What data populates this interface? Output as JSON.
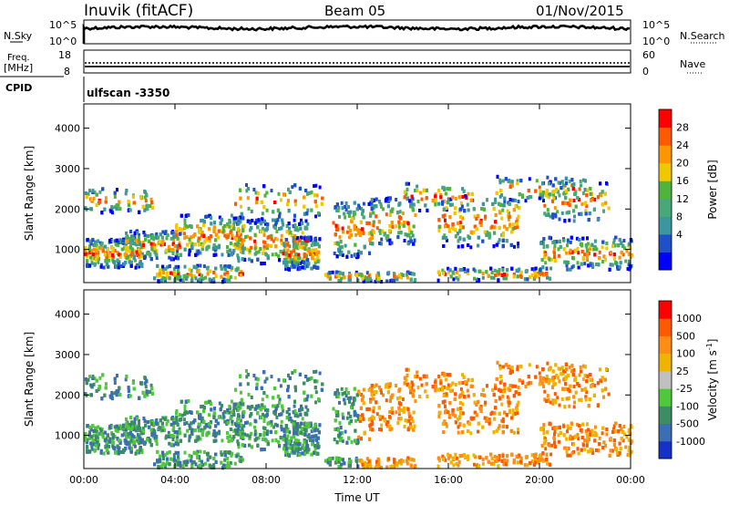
{
  "header": {
    "station": "Inuvik (fitACF)",
    "beam": "Beam 05",
    "date": "01/Nov/2015"
  },
  "nsky_panel": {
    "left_label": "N.Sky",
    "left_ticks": [
      "10^5",
      "10^0"
    ],
    "right_label": "N.Search",
    "right_ticks": [
      "10^5",
      "10^0"
    ]
  },
  "freq_panel": {
    "left_label": "Freq.",
    "left_unit": "[MHz]",
    "left_ticks": [
      "18",
      "8"
    ],
    "right_label": "Nave",
    "right_ticks": [
      "60",
      "0"
    ]
  },
  "cpid": {
    "label": "CPID",
    "program": "ulfscan -3350"
  },
  "chart_data": [
    {
      "type": "heatmap",
      "quantity": "Power",
      "ylabel": "Slant Range [km]",
      "xlabel": "Time UT",
      "x_ticks": [
        "00:00",
        "04:00",
        "08:00",
        "12:00",
        "16:00",
        "20:00",
        "00:00"
      ],
      "x_range_hours": [
        0,
        24
      ],
      "y_ticks": [
        1000,
        2000,
        3000,
        4000
      ],
      "ylim": [
        180,
        4600
      ],
      "colorbar": {
        "label": "Power [dB]",
        "ticks": [
          "28",
          "24",
          "20",
          "16",
          "12",
          "8",
          "4"
        ],
        "colors": [
          "#0000ff",
          "#2050c8",
          "#3c96a0",
          "#48a878",
          "#50b43c",
          "#f0c800",
          "#ff9600",
          "#ff5a00",
          "#ff0000"
        ]
      }
    },
    {
      "type": "heatmap",
      "quantity": "Velocity",
      "ylabel": "Slant Range [km]",
      "xlabel": "Time UT",
      "x_ticks": [
        "00:00",
        "04:00",
        "08:00",
        "12:00",
        "16:00",
        "20:00",
        "00:00"
      ],
      "x_range_hours": [
        0,
        24
      ],
      "y_ticks": [
        1000,
        2000,
        3000,
        4000
      ],
      "ylim": [
        180,
        4600
      ],
      "colorbar": {
        "label": "Velocity [m s",
        "label_sup": "-1",
        "label_close": "]",
        "ticks": [
          "1000",
          "500",
          "100",
          "25",
          "-25",
          "-100",
          "-500",
          "-1000"
        ],
        "colors": [
          "#1432c8",
          "#3c6eb4",
          "#3c8c64",
          "#50c83c",
          "#c0c0c0",
          "#f0b400",
          "#ff8c14",
          "#ff5a00",
          "#ff0000"
        ]
      }
    }
  ],
  "x_axis_title": "Time UT"
}
